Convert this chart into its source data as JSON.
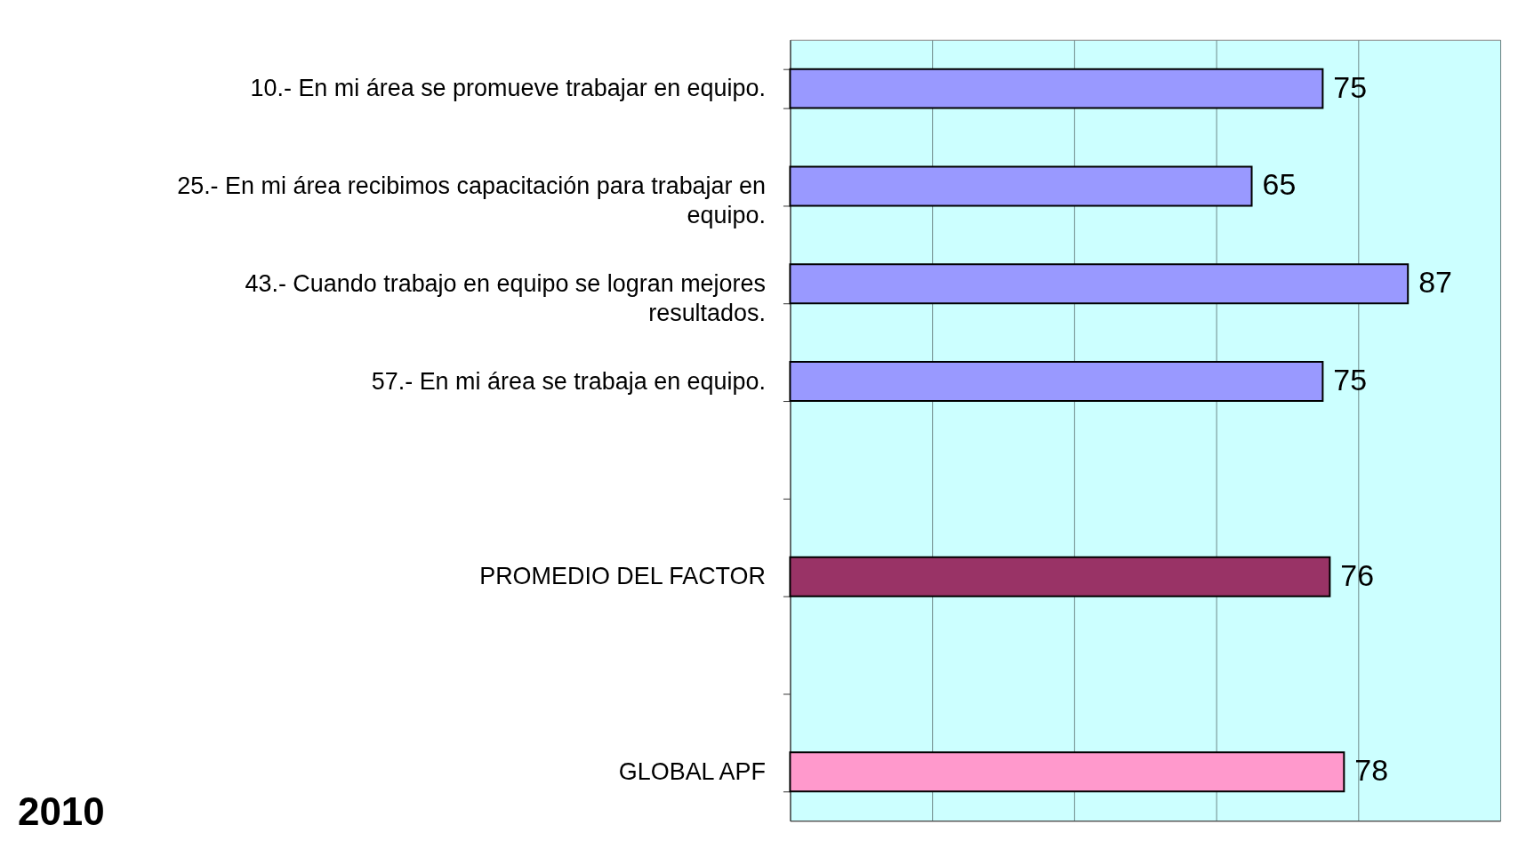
{
  "chart_data": {
    "type": "bar",
    "orientation": "horizontal",
    "categories": [
      "10.- En mi área se promueve trabajar en equipo.",
      "25.- En mi área recibimos capacitación para trabajar en equipo.",
      "43.- Cuando trabajo en equipo se logran mejores resultados.",
      "57.- En mi área se trabaja en equipo.",
      null,
      "PROMEDIO DEL FACTOR",
      null,
      "GLOBAL APF"
    ],
    "values": [
      75,
      65,
      87,
      75,
      null,
      76,
      null,
      78
    ],
    "colors": [
      "#9999ff",
      "#9999ff",
      "#9999ff",
      "#9999ff",
      null,
      "#993366",
      null,
      "#ff99cc"
    ],
    "data_labels": true,
    "xlim": [
      0,
      100
    ],
    "xticks": [
      {
        "value": 0,
        "label": null
      },
      {
        "value": 20,
        "label": null
      },
      {
        "value": 40,
        "label": null
      },
      {
        "value": 60,
        "label": null
      },
      {
        "value": 80,
        "label": null
      },
      {
        "value": 100,
        "label": null
      }
    ],
    "tick_labels": "y",
    "grid": "x",
    "annotations": [
      "2010"
    ]
  }
}
